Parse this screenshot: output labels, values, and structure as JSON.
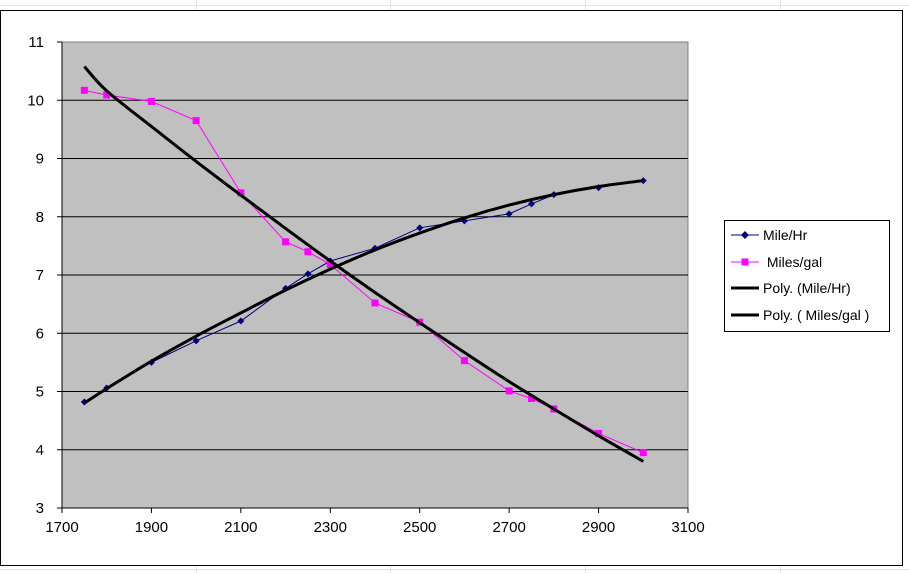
{
  "chart_data": {
    "type": "line",
    "title": "",
    "xlabel": "",
    "ylabel": "",
    "xlim": [
      1700,
      3100
    ],
    "ylim": [
      3,
      11
    ],
    "x_ticks": [
      "1700",
      "1900",
      "2100",
      "2300",
      "2500",
      "2700",
      "2900",
      "3100"
    ],
    "y_ticks": [
      "3",
      "4",
      "5",
      "6",
      "7",
      "8",
      "9",
      "10",
      "11"
    ],
    "grid": "horizontal major gridlines",
    "plot_background": "#c0c0c0",
    "legend_position": "right",
    "series": [
      {
        "name": "Mile/Hr",
        "color": "#000080",
        "marker": "diamond",
        "points": [
          [
            1750,
            4.82
          ],
          [
            1800,
            5.06
          ],
          [
            1900,
            5.5
          ],
          [
            2000,
            5.87
          ],
          [
            2100,
            6.21
          ],
          [
            2200,
            6.77
          ],
          [
            2250,
            7.02
          ],
          [
            2300,
            7.24
          ],
          [
            2400,
            7.46
          ],
          [
            2500,
            7.81
          ],
          [
            2600,
            7.93
          ],
          [
            2700,
            8.05
          ],
          [
            2750,
            8.22
          ],
          [
            2800,
            8.38
          ],
          [
            2900,
            8.5
          ],
          [
            3000,
            8.62
          ]
        ]
      },
      {
        "name": " Miles/gal",
        "color": "#ff00ff",
        "marker": "square",
        "points": [
          [
            1750,
            10.17
          ],
          [
            1800,
            10.09
          ],
          [
            1900,
            9.98
          ],
          [
            2000,
            9.65
          ],
          [
            2100,
            8.41
          ],
          [
            2200,
            7.57
          ],
          [
            2250,
            7.4
          ],
          [
            2300,
            7.18
          ],
          [
            2400,
            6.52
          ],
          [
            2500,
            6.19
          ],
          [
            2600,
            5.53
          ],
          [
            2700,
            5.01
          ],
          [
            2750,
            4.88
          ],
          [
            2800,
            4.7
          ],
          [
            2900,
            4.28
          ],
          [
            3000,
            3.95
          ]
        ]
      },
      {
        "name": "Poly. (Mile/Hr)",
        "color": "#000000",
        "trendline": true,
        "points": [
          [
            1750,
            4.8
          ],
          [
            1800,
            5.05
          ],
          [
            1900,
            5.52
          ],
          [
            2000,
            5.95
          ],
          [
            2100,
            6.35
          ],
          [
            2200,
            6.74
          ],
          [
            2300,
            7.1
          ],
          [
            2400,
            7.43
          ],
          [
            2500,
            7.72
          ],
          [
            2600,
            7.98
          ],
          [
            2700,
            8.2
          ],
          [
            2800,
            8.38
          ],
          [
            2900,
            8.52
          ],
          [
            3000,
            8.62
          ]
        ]
      },
      {
        "name": "Poly. ( Miles/gal )",
        "color": "#000000",
        "trendline": true,
        "points": [
          [
            1750,
            10.58
          ],
          [
            1800,
            10.16
          ],
          [
            1900,
            9.55
          ],
          [
            2000,
            8.95
          ],
          [
            2100,
            8.37
          ],
          [
            2200,
            7.8
          ],
          [
            2300,
            7.24
          ],
          [
            2400,
            6.7
          ],
          [
            2500,
            6.18
          ],
          [
            2600,
            5.67
          ],
          [
            2700,
            5.17
          ],
          [
            2800,
            4.7
          ],
          [
            2900,
            4.24
          ],
          [
            3000,
            3.8
          ]
        ]
      }
    ]
  }
}
